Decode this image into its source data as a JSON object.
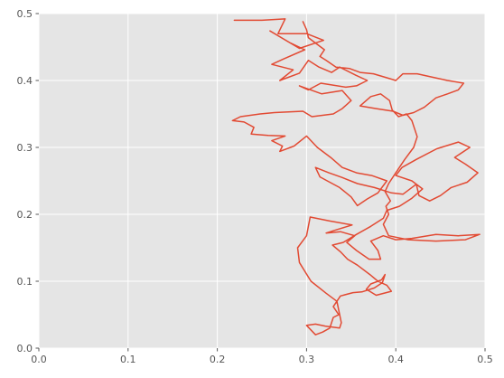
{
  "chart_data": {
    "type": "line",
    "title": "",
    "xlabel": "",
    "ylabel": "",
    "xlim": [
      0,
      0.5
    ],
    "ylim": [
      0,
      0.5
    ],
    "grid": true,
    "legend": "none",
    "x_ticks": [
      "0.0",
      "0.1",
      "0.2",
      "0.3",
      "0.4",
      "0.5"
    ],
    "y_ticks": [
      "0.0",
      "0.1",
      "0.2",
      "0.3",
      "0.4",
      "0.5"
    ],
    "style": {
      "background": "#e5e5e5",
      "grid_color": "#ffffff",
      "line_color": "#e24a33",
      "tick_color": "#555555"
    },
    "series": [
      {
        "points": [
          [
            0.219,
            0.49
          ],
          [
            0.25,
            0.49
          ],
          [
            0.276,
            0.492
          ],
          [
            0.268,
            0.47
          ],
          [
            0.3,
            0.47
          ],
          [
            0.319,
            0.46
          ],
          [
            0.292,
            0.448
          ],
          [
            0.259,
            0.474
          ],
          [
            0.282,
            0.456
          ],
          [
            0.298,
            0.446
          ],
          [
            0.274,
            0.432
          ],
          [
            0.261,
            0.424
          ],
          [
            0.285,
            0.416
          ],
          [
            0.27,
            0.4
          ],
          [
            0.292,
            0.411
          ],
          [
            0.302,
            0.43
          ],
          [
            0.314,
            0.42
          ],
          [
            0.328,
            0.412
          ],
          [
            0.337,
            0.42
          ],
          [
            0.355,
            0.408
          ],
          [
            0.368,
            0.4
          ],
          [
            0.356,
            0.392
          ],
          [
            0.344,
            0.39
          ],
          [
            0.316,
            0.396
          ],
          [
            0.302,
            0.386
          ],
          [
            0.292,
            0.392
          ],
          [
            0.317,
            0.38
          ],
          [
            0.34,
            0.385
          ],
          [
            0.35,
            0.37
          ],
          [
            0.34,
            0.358
          ],
          [
            0.33,
            0.35
          ],
          [
            0.306,
            0.346
          ],
          [
            0.296,
            0.354
          ],
          [
            0.264,
            0.352
          ],
          [
            0.248,
            0.35
          ],
          [
            0.226,
            0.346
          ],
          [
            0.217,
            0.34
          ],
          [
            0.23,
            0.338
          ],
          [
            0.241,
            0.33
          ],
          [
            0.238,
            0.32
          ],
          [
            0.257,
            0.318
          ],
          [
            0.276,
            0.317
          ],
          [
            0.261,
            0.31
          ],
          [
            0.273,
            0.302
          ],
          [
            0.27,
            0.294
          ],
          [
            0.286,
            0.302
          ],
          [
            0.3,
            0.317
          ],
          [
            0.312,
            0.3
          ],
          [
            0.327,
            0.285
          ],
          [
            0.34,
            0.27
          ],
          [
            0.356,
            0.262
          ],
          [
            0.373,
            0.258
          ],
          [
            0.39,
            0.25
          ],
          [
            0.38,
            0.232
          ],
          [
            0.368,
            0.223
          ],
          [
            0.357,
            0.213
          ],
          [
            0.35,
            0.226
          ],
          [
            0.337,
            0.24
          ],
          [
            0.326,
            0.248
          ],
          [
            0.315,
            0.256
          ],
          [
            0.31,
            0.27
          ],
          [
            0.325,
            0.262
          ],
          [
            0.34,
            0.255
          ],
          [
            0.357,
            0.246
          ],
          [
            0.376,
            0.24
          ],
          [
            0.395,
            0.232
          ],
          [
            0.408,
            0.23
          ],
          [
            0.423,
            0.245
          ],
          [
            0.426,
            0.228
          ],
          [
            0.438,
            0.22
          ],
          [
            0.45,
            0.228
          ],
          [
            0.462,
            0.24
          ],
          [
            0.48,
            0.248
          ],
          [
            0.492,
            0.262
          ],
          [
            0.478,
            0.275
          ],
          [
            0.466,
            0.285
          ],
          [
            0.483,
            0.3
          ],
          [
            0.47,
            0.308
          ],
          [
            0.446,
            0.298
          ],
          [
            0.423,
            0.282
          ],
          [
            0.407,
            0.27
          ],
          [
            0.4,
            0.258
          ],
          [
            0.418,
            0.25
          ],
          [
            0.43,
            0.238
          ],
          [
            0.418,
            0.224
          ],
          [
            0.404,
            0.212
          ],
          [
            0.39,
            0.206
          ],
          [
            0.386,
            0.194
          ],
          [
            0.372,
            0.182
          ],
          [
            0.356,
            0.17
          ],
          [
            0.341,
            0.158
          ],
          [
            0.329,
            0.154
          ],
          [
            0.338,
            0.144
          ],
          [
            0.346,
            0.133
          ],
          [
            0.357,
            0.124
          ],
          [
            0.371,
            0.11
          ],
          [
            0.38,
            0.1
          ],
          [
            0.39,
            0.094
          ],
          [
            0.395,
            0.085
          ],
          [
            0.378,
            0.079
          ],
          [
            0.367,
            0.088
          ],
          [
            0.372,
            0.096
          ],
          [
            0.384,
            0.102
          ],
          [
            0.388,
            0.11
          ],
          [
            0.385,
            0.098
          ],
          [
            0.376,
            0.09
          ],
          [
            0.362,
            0.084
          ],
          [
            0.352,
            0.083
          ],
          [
            0.338,
            0.078
          ],
          [
            0.33,
            0.062
          ],
          [
            0.336,
            0.05
          ],
          [
            0.33,
            0.046
          ],
          [
            0.326,
            0.03
          ],
          [
            0.318,
            0.024
          ],
          [
            0.31,
            0.02
          ],
          [
            0.3,
            0.034
          ],
          [
            0.31,
            0.036
          ],
          [
            0.321,
            0.033
          ],
          [
            0.337,
            0.03
          ],
          [
            0.339,
            0.038
          ],
          [
            0.334,
            0.07
          ],
          [
            0.322,
            0.082
          ],
          [
            0.305,
            0.1
          ],
          [
            0.292,
            0.128
          ],
          [
            0.29,
            0.15
          ],
          [
            0.3,
            0.168
          ],
          [
            0.304,
            0.196
          ],
          [
            0.326,
            0.19
          ],
          [
            0.351,
            0.184
          ],
          [
            0.336,
            0.178
          ],
          [
            0.322,
            0.172
          ],
          [
            0.338,
            0.174
          ],
          [
            0.354,
            0.168
          ],
          [
            0.345,
            0.158
          ],
          [
            0.356,
            0.146
          ],
          [
            0.37,
            0.133
          ],
          [
            0.383,
            0.133
          ],
          [
            0.38,
            0.146
          ],
          [
            0.372,
            0.16
          ],
          [
            0.386,
            0.168
          ],
          [
            0.4,
            0.162
          ],
          [
            0.418,
            0.164
          ],
          [
            0.445,
            0.17
          ],
          [
            0.47,
            0.168
          ],
          [
            0.494,
            0.17
          ],
          [
            0.478,
            0.162
          ],
          [
            0.445,
            0.16
          ],
          [
            0.414,
            0.162
          ],
          [
            0.392,
            0.168
          ],
          [
            0.386,
            0.185
          ],
          [
            0.392,
            0.2
          ],
          [
            0.389,
            0.212
          ],
          [
            0.394,
            0.22
          ],
          [
            0.388,
            0.234
          ],
          [
            0.392,
            0.246
          ],
          [
            0.4,
            0.262
          ],
          [
            0.41,
            0.282
          ],
          [
            0.42,
            0.3
          ],
          [
            0.424,
            0.316
          ],
          [
            0.418,
            0.34
          ],
          [
            0.412,
            0.35
          ],
          [
            0.403,
            0.346
          ],
          [
            0.396,
            0.356
          ],
          [
            0.393,
            0.37
          ],
          [
            0.383,
            0.38
          ],
          [
            0.372,
            0.376
          ],
          [
            0.36,
            0.362
          ],
          [
            0.378,
            0.358
          ],
          [
            0.397,
            0.354
          ],
          [
            0.408,
            0.348
          ],
          [
            0.42,
            0.352
          ],
          [
            0.432,
            0.36
          ],
          [
            0.445,
            0.374
          ],
          [
            0.458,
            0.38
          ],
          [
            0.47,
            0.386
          ],
          [
            0.476,
            0.396
          ],
          [
            0.458,
            0.4
          ],
          [
            0.444,
            0.404
          ],
          [
            0.424,
            0.41
          ],
          [
            0.408,
            0.41
          ],
          [
            0.4,
            0.4
          ],
          [
            0.39,
            0.404
          ],
          [
            0.375,
            0.41
          ],
          [
            0.36,
            0.412
          ],
          [
            0.348,
            0.418
          ],
          [
            0.333,
            0.42
          ],
          [
            0.322,
            0.43
          ],
          [
            0.315,
            0.436
          ],
          [
            0.32,
            0.446
          ],
          [
            0.31,
            0.456
          ],
          [
            0.302,
            0.464
          ],
          [
            0.3,
            0.476
          ],
          [
            0.296,
            0.488
          ]
        ]
      }
    ]
  }
}
